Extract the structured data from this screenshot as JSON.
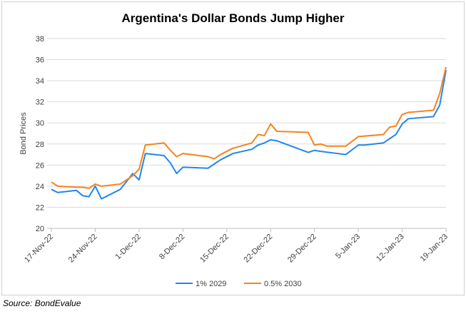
{
  "chart_data": {
    "type": "line",
    "title": "Argentina's Dollar Bonds Jump Higher",
    "xlabel": "",
    "ylabel": "Bond Prices",
    "ylim": [
      20,
      38
    ],
    "yticks": [
      20,
      22,
      24,
      26,
      28,
      30,
      32,
      34,
      36,
      38
    ],
    "x_unit": "days since 17-Nov-22",
    "xlim": [
      0,
      63
    ],
    "xticks": [
      {
        "day": 0,
        "label": "17-Nov-22"
      },
      {
        "day": 7,
        "label": "24-Nov-22"
      },
      {
        "day": 14,
        "label": "1-Dec-22"
      },
      {
        "day": 21,
        "label": "8-Dec-22"
      },
      {
        "day": 28,
        "label": "15-Dec-22"
      },
      {
        "day": 35,
        "label": "22-Dec-22"
      },
      {
        "day": 42,
        "label": "29-Dec-22"
      },
      {
        "day": 49,
        "label": "5-Jan-23"
      },
      {
        "day": 56,
        "label": "12-Jan-23"
      },
      {
        "day": 63,
        "label": "19-Jan-23"
      }
    ],
    "grid": "horizontal",
    "legend": "bottom",
    "series": [
      {
        "name": "1% 2029",
        "color": "#1f87f0",
        "x": [
          0,
          1,
          4,
          5,
          6,
          7,
          8,
          11,
          13,
          14,
          15,
          18,
          19,
          20,
          21,
          25,
          27,
          29,
          32,
          33,
          34,
          35,
          36,
          41,
          42,
          43,
          47,
          49,
          50,
          53,
          54,
          55,
          56,
          57,
          61,
          62,
          63
        ],
        "y": [
          23.7,
          23.4,
          23.6,
          23.1,
          23.0,
          24.0,
          22.8,
          23.7,
          25.2,
          24.6,
          27.1,
          26.9,
          26.2,
          25.2,
          25.8,
          25.7,
          26.5,
          27.1,
          27.5,
          27.9,
          28.1,
          28.4,
          28.3,
          27.2,
          27.4,
          27.3,
          27.0,
          27.9,
          27.9,
          28.1,
          28.5,
          28.9,
          29.9,
          30.4,
          30.6,
          31.7,
          35.0
        ]
      },
      {
        "name": "0.5% 2030",
        "color": "#f5841f",
        "x": [
          0,
          1,
          4,
          5,
          6,
          7,
          8,
          11,
          13,
          14,
          15,
          18,
          19,
          20,
          21,
          25,
          26,
          27,
          29,
          32,
          33,
          34,
          35,
          36,
          41,
          42,
          43,
          44,
          47,
          49,
          53,
          54,
          55,
          56,
          57,
          61,
          62,
          63
        ],
        "y": [
          24.4,
          24.0,
          23.9,
          23.9,
          23.8,
          24.2,
          24.0,
          24.2,
          25.0,
          25.6,
          27.9,
          28.1,
          27.4,
          26.8,
          27.1,
          26.8,
          26.6,
          27.0,
          27.6,
          28.1,
          28.9,
          28.8,
          29.9,
          29.2,
          29.1,
          27.9,
          28.0,
          27.8,
          27.8,
          28.7,
          28.9,
          29.6,
          29.7,
          30.8,
          31.0,
          31.2,
          32.8,
          35.3
        ]
      }
    ]
  },
  "source": "Source: BondEvalue"
}
